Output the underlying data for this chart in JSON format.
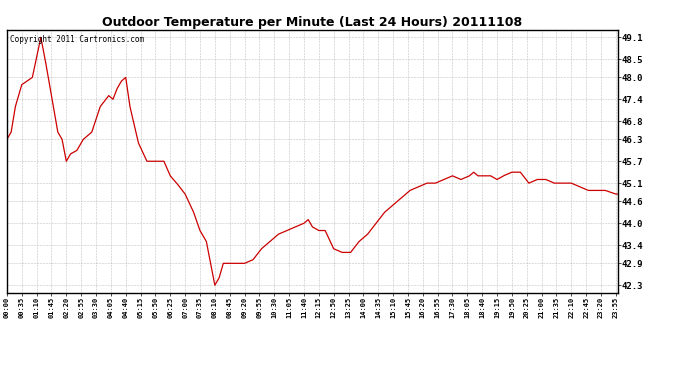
{
  "title": "Outdoor Temperature per Minute (Last 24 Hours) 20111108",
  "copyright_text": "Copyright 2011 Cartronics.com",
  "line_color": "#cc0000",
  "background_color": "#ffffff",
  "plot_bg_color": "#ffffff",
  "grid_color": "#bbbbbb",
  "yticks": [
    42.3,
    42.9,
    43.4,
    44.0,
    44.6,
    45.1,
    45.7,
    46.3,
    46.8,
    47.4,
    48.0,
    48.5,
    49.1
  ],
  "ylim": [
    42.1,
    49.3
  ],
  "xtick_labels": [
    "00:00",
    "00:35",
    "01:10",
    "01:45",
    "02:20",
    "02:55",
    "03:30",
    "04:05",
    "04:40",
    "05:15",
    "05:50",
    "06:25",
    "07:00",
    "07:35",
    "08:10",
    "08:45",
    "09:20",
    "09:55",
    "10:30",
    "11:05",
    "11:40",
    "12:15",
    "12:50",
    "13:25",
    "14:00",
    "14:35",
    "15:10",
    "15:45",
    "16:20",
    "16:55",
    "17:30",
    "18:05",
    "18:40",
    "19:15",
    "19:50",
    "20:25",
    "21:00",
    "21:35",
    "22:10",
    "22:45",
    "23:20",
    "23:55"
  ],
  "key_points": {
    "0:00": 46.3,
    "0:10": 46.5,
    "0:20": 47.2,
    "0:35": 47.8,
    "1:00": 48.0,
    "1:20": 49.1,
    "1:30": 48.5,
    "1:45": 47.5,
    "2:00": 46.5,
    "2:10": 46.3,
    "2:20": 45.7,
    "2:30": 45.9,
    "2:45": 46.0,
    "3:00": 46.3,
    "3:20": 46.5,
    "3:40": 47.2,
    "4:00": 47.5,
    "4:10": 47.4,
    "4:20": 47.7,
    "4:30": 47.9,
    "4:40": 48.0,
    "4:50": 47.2,
    "5:10": 46.2,
    "5:30": 45.7,
    "5:50": 45.7,
    "6:10": 45.7,
    "6:25": 45.3,
    "6:40": 45.1,
    "7:00": 44.8,
    "7:20": 44.3,
    "7:35": 43.8,
    "7:50": 43.5,
    "8:10": 42.3,
    "8:20": 42.5,
    "8:30": 42.9,
    "8:45": 42.9,
    "9:00": 42.9,
    "9:20": 42.9,
    "9:40": 43.0,
    "10:00": 43.3,
    "10:20": 43.5,
    "10:40": 43.7,
    "11:00": 43.8,
    "11:20": 43.9,
    "11:40": 44.0,
    "11:50": 44.1,
    "12:00": 43.9,
    "12:15": 43.8,
    "12:30": 43.8,
    "12:50": 43.3,
    "13:10": 43.2,
    "13:30": 43.2,
    "13:50": 43.5,
    "14:10": 43.7,
    "14:30": 44.0,
    "14:50": 44.3,
    "15:10": 44.5,
    "15:30": 44.7,
    "15:50": 44.9,
    "16:10": 45.0,
    "16:30": 45.1,
    "16:50": 45.1,
    "17:10": 45.2,
    "17:30": 45.3,
    "17:50": 45.2,
    "18:10": 45.3,
    "18:20": 45.4,
    "18:30": 45.3,
    "19:00": 45.3,
    "19:15": 45.2,
    "19:30": 45.3,
    "19:50": 45.4,
    "20:10": 45.4,
    "20:30": 45.1,
    "20:50": 45.2,
    "21:10": 45.2,
    "21:30": 45.1,
    "21:50": 45.1,
    "22:10": 45.1,
    "22:30": 45.0,
    "22:50": 44.9,
    "23:10": 44.9,
    "23:30": 44.9,
    "23:55": 44.8
  }
}
